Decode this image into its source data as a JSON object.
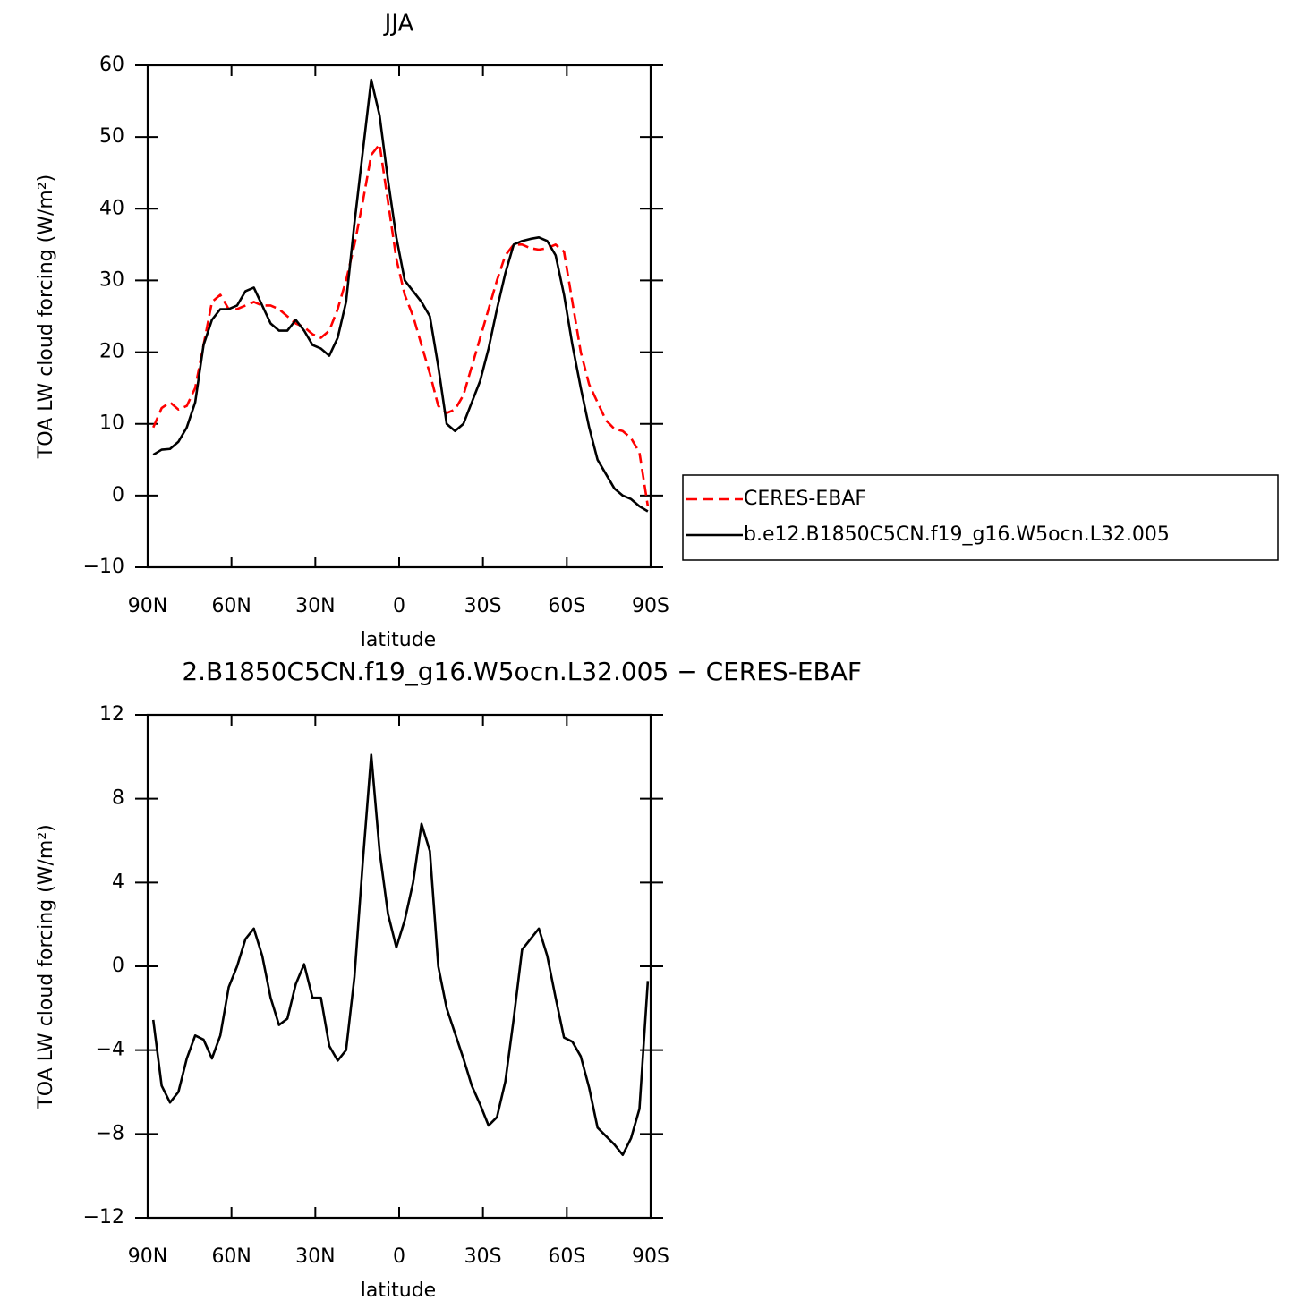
{
  "chart_data": [
    {
      "type": "line",
      "title": "JJA",
      "xlabel": "latitude",
      "ylabel": "TOA LW cloud forcing (W/m²)",
      "xlim": [
        90,
        -90
      ],
      "ylim": [
        -10,
        60
      ],
      "xticks": [
        {
          "value": 90,
          "label": "90N"
        },
        {
          "value": 60,
          "label": "60N"
        },
        {
          "value": 30,
          "label": "30N"
        },
        0,
        {
          "value": -30,
          "label": "30S"
        },
        {
          "value": -60,
          "label": "60S"
        },
        {
          "value": -90,
          "label": "90S"
        }
      ],
      "yticks": [
        {
          "value": -10,
          "label": "−10"
        },
        0,
        10,
        20,
        30,
        40,
        50,
        60
      ],
      "x": [
        88,
        85,
        82,
        79,
        76,
        73,
        70,
        67,
        64,
        61,
        58,
        55,
        52,
        49,
        46,
        43,
        40,
        37,
        34,
        31,
        28,
        25,
        22,
        19,
        16,
        13,
        10,
        7,
        4,
        1,
        -2,
        -5,
        -8,
        -11,
        -14,
        -17,
        -20,
        -23,
        -26,
        -29,
        -32,
        -35,
        -38,
        -41,
        -44,
        -47,
        -50,
        -53,
        -56,
        -59,
        -62,
        -65,
        -68,
        -71,
        -74,
        -77,
        -80,
        -83,
        -86,
        -89
      ],
      "series": [
        {
          "name": "CERES-EBAF",
          "color": "#ff0000",
          "line_style": "dashed",
          "values": [
            9.5,
            12.2,
            13,
            12,
            12.5,
            15,
            21,
            27,
            28,
            26,
            26,
            26.5,
            27,
            26.5,
            26.5,
            26,
            25,
            24,
            23.5,
            22.5,
            22,
            23,
            26,
            30,
            35,
            41,
            47.5,
            49,
            41,
            33,
            28,
            25,
            21,
            17,
            12.5,
            11.5,
            12,
            14,
            18,
            22,
            26,
            30,
            33.5,
            35,
            35,
            34.5,
            34.3,
            34.5,
            35,
            34,
            27,
            20,
            15.5,
            13,
            10.5,
            9.3,
            9,
            8,
            6,
            -1.5
          ]
        },
        {
          "name": "b.e12.B1850C5CN.f19_g16.W5ocn.L32.005",
          "color": "#000000",
          "line_style": "solid",
          "values": [
            5.7,
            6.4,
            6.5,
            7.5,
            9.5,
            13,
            21,
            24.5,
            26,
            26,
            26.5,
            28.5,
            29,
            26.5,
            24,
            23,
            23,
            24.5,
            23,
            21,
            20.5,
            19.5,
            22,
            27,
            38,
            48,
            58,
            53,
            44,
            36,
            30,
            28.5,
            27,
            25,
            18,
            10,
            9,
            10,
            13,
            16,
            20.5,
            26,
            31,
            35,
            35.5,
            35.8,
            36,
            35.5,
            33.5,
            28,
            21,
            15,
            9.5,
            5,
            3,
            1,
            0,
            -0.5,
            -1.5,
            -2.2
          ]
        }
      ]
    },
    {
      "type": "line",
      "title": "2.B1850C5CN.f19_g16.W5ocn.L32.005 − CERES-EBAF",
      "xlabel": "latitude",
      "ylabel": "TOA LW cloud forcing (W/m²)",
      "xlim": [
        90,
        -90
      ],
      "ylim": [
        -12,
        12
      ],
      "xticks": [
        {
          "value": 90,
          "label": "90N"
        },
        {
          "value": 60,
          "label": "60N"
        },
        {
          "value": 30,
          "label": "30N"
        },
        0,
        {
          "value": -30,
          "label": "30S"
        },
        {
          "value": -60,
          "label": "60S"
        },
        {
          "value": -90,
          "label": "90S"
        }
      ],
      "yticks": [
        {
          "value": -12,
          "label": "−12"
        },
        {
          "value": -8,
          "label": "−8"
        },
        {
          "value": -4,
          "label": "−4"
        },
        0,
        4,
        8,
        12
      ],
      "x": [
        88,
        85,
        82,
        79,
        76,
        73,
        70,
        67,
        64,
        61,
        58,
        55,
        52,
        49,
        46,
        43,
        40,
        37,
        34,
        31,
        28,
        25,
        22,
        19,
        16,
        13,
        10,
        7,
        4,
        1,
        -2,
        -5,
        -8,
        -11,
        -14,
        -17,
        -20,
        -23,
        -26,
        -29,
        -32,
        -35,
        -38,
        -41,
        -44,
        -47,
        -50,
        -53,
        -56,
        -59,
        -62,
        -65,
        -68,
        -71,
        -74,
        -77,
        -80,
        -83,
        -86,
        -89
      ],
      "series": [
        {
          "color": "#000000",
          "line_style": "solid",
          "values": [
            -2.56,
            -5.7,
            -6.5,
            -6,
            -4.4,
            -3.3,
            -3.5,
            -4.4,
            -3.3,
            -1,
            0,
            1.3,
            1.8,
            0.5,
            -1.5,
            -2.8,
            -2.5,
            -0.85,
            0.1,
            -1.5,
            -1.5,
            -3.8,
            -4.5,
            -4,
            -0.5,
            5,
            10.1,
            5.5,
            2.5,
            0.9,
            2.2,
            4,
            6.8,
            5.5,
            0,
            -2,
            -3.2,
            -4.4,
            -5.7,
            -6.6,
            -7.6,
            -7.2,
            -5.5,
            -2.5,
            0.8,
            1.3,
            1.8,
            0.5,
            -1.5,
            -3.4,
            -3.6,
            -4.3,
            -5.8,
            -7.7,
            -8.1,
            -8.5,
            -9,
            -8.2,
            -6.8,
            -0.7
          ]
        }
      ]
    }
  ]
}
